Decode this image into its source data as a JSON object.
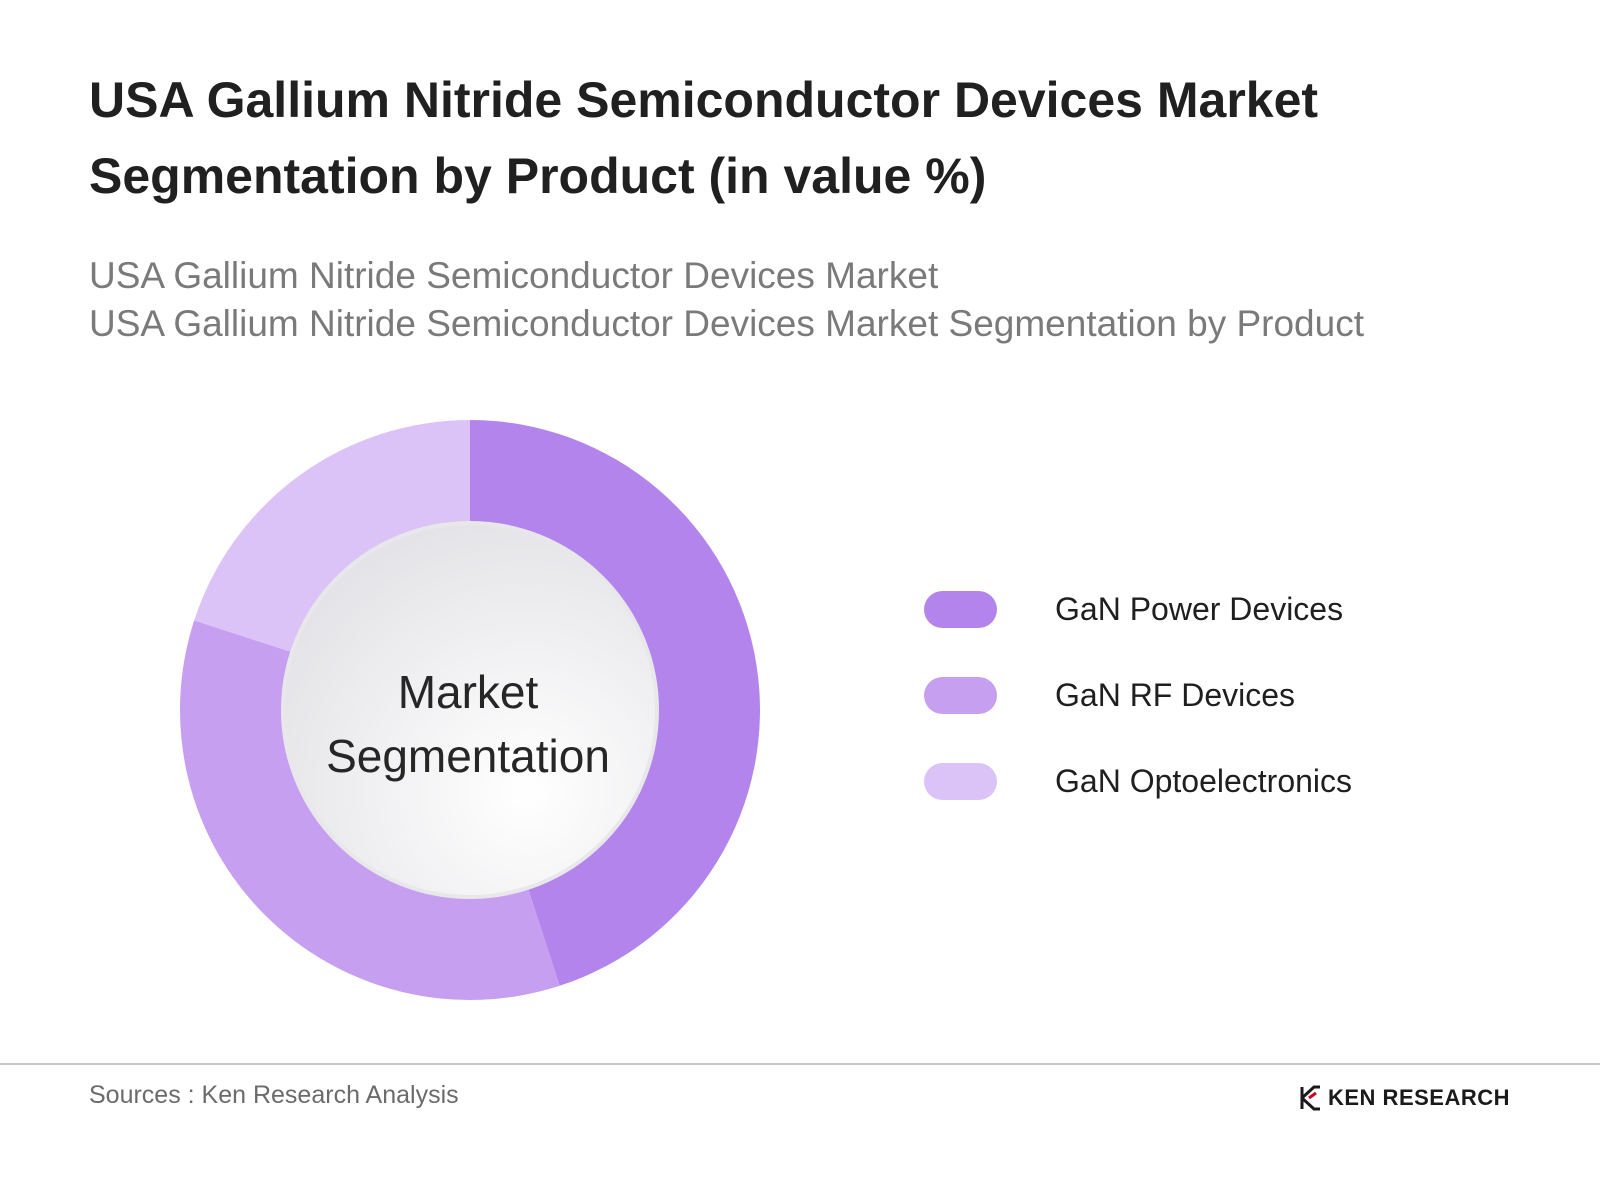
{
  "header": {
    "title_line1": "USA Gallium Nitride Semiconductor Devices Market",
    "title_line2": "Segmentation by Product (in value %)",
    "subtitle_line1": "USA Gallium Nitride Semiconductor Devices Market",
    "subtitle_line2": "USA Gallium Nitride Semiconductor Devices Market Segmentation by Product"
  },
  "chart_data": {
    "type": "pie",
    "donut": true,
    "center_label_line1": "Market",
    "center_label_line2": "Segmentation",
    "categories": [
      "GaN Power Devices",
      "GaN RF Devices",
      "GaN Optoelectronics"
    ],
    "values": [
      45,
      35,
      20
    ],
    "colors": [
      "#b385ec",
      "#c69ff0",
      "#dcc3f7"
    ],
    "legend": "right"
  },
  "footer": {
    "source": "Sources : Ken Research Analysis",
    "brand": "KEN RESEARCH"
  }
}
